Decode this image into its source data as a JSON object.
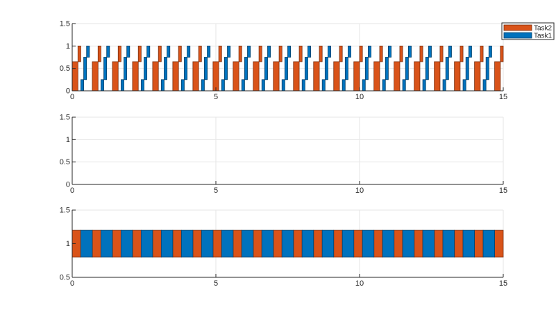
{
  "chart_data": [
    {
      "type": "bar",
      "xlim": [
        0,
        15
      ],
      "ylim": [
        0,
        1.5
      ],
      "xticks": [
        0,
        5,
        10,
        15
      ],
      "yticks": [
        0,
        0.5,
        1,
        1.5
      ],
      "ytick_labels": [
        "0",
        "0.5",
        "1",
        "1.5"
      ],
      "grid": true,
      "legend": {
        "placement": "top-right",
        "entries": [
          "Task2",
          "Task1"
        ]
      },
      "pattern_period": 0.7,
      "series": [
        {
          "name": "Task2",
          "color": "#D95319",
          "segments": [
            {
              "start": 0.0,
              "end": 0.2,
              "low": 0,
              "high": 0.65
            },
            {
              "start": 0.2,
              "end": 0.3,
              "low": 0.65,
              "high": 1.0
            }
          ]
        },
        {
          "name": "Task1",
          "color": "#0072BD",
          "segments": [
            {
              "start": 0.3,
              "end": 0.4,
              "low": 0,
              "high": 0.25
            },
            {
              "start": 0.4,
              "end": 0.5,
              "low": 0.25,
              "high": 0.75
            },
            {
              "start": 0.5,
              "end": 0.6,
              "low": 0.75,
              "high": 1.0
            }
          ]
        }
      ]
    },
    {
      "type": "bar",
      "xlim": [
        0,
        15
      ],
      "ylim": [
        0,
        1.5
      ],
      "xticks": [
        0,
        5,
        10,
        15
      ],
      "yticks": [
        0,
        0.5,
        1,
        1.5
      ],
      "ytick_labels": [
        "0",
        "0.5",
        "1",
        "1.5"
      ],
      "grid": true,
      "series": []
    },
    {
      "type": "bar",
      "xlim": [
        0,
        15
      ],
      "ylim": [
        0.5,
        1.5
      ],
      "xticks": [
        0,
        5,
        10,
        15
      ],
      "yticks": [
        0.5,
        1,
        1.5
      ],
      "ytick_labels": [
        "0.5",
        "1",
        "1.5"
      ],
      "grid": true,
      "band": [
        0.8,
        1.2
      ],
      "series": [
        {
          "name": "Task2",
          "color": "#D95319",
          "segments": [
            {
              "start": 0.0,
              "end": 0.3
            }
          ]
        },
        {
          "name": "Task1",
          "color": "#0072BD",
          "segments": [
            {
              "start": 0.3,
              "end": 0.7
            }
          ]
        }
      ]
    }
  ]
}
